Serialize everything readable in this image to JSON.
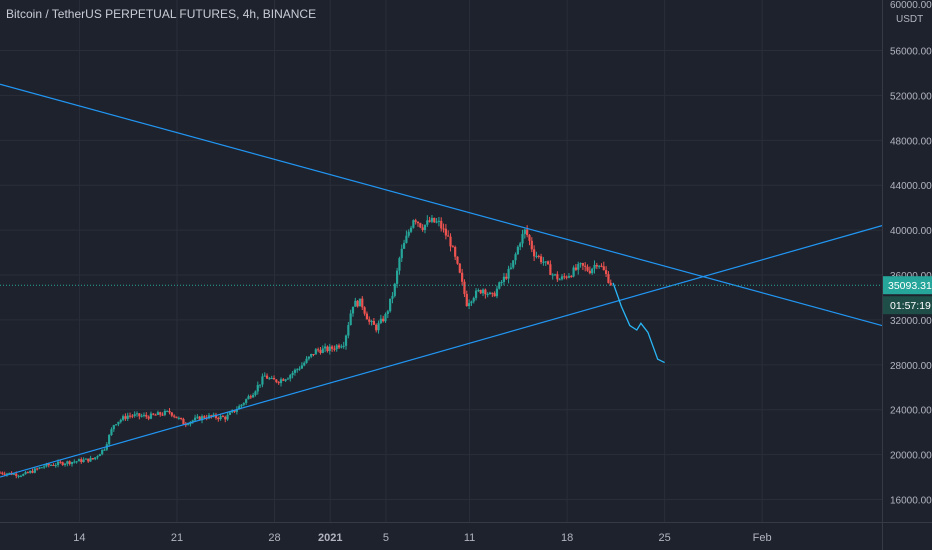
{
  "header": {
    "symbol_title": "Bitcoin / TetherUS PERPETUAL FUTURES, 4h, BINANCE"
  },
  "price_axis": {
    "unit": "USDT",
    "top_label": "60000.00",
    "last_price": "35093.31",
    "countdown": "01:57:19"
  },
  "colors": {
    "background": "#1e222d",
    "grid": "#2a2e39",
    "up_candle": "#26a69a",
    "down_candle": "#ef5350",
    "trendline": "#2196f3",
    "projection": "#29b6f6",
    "axis_text": "#b2b5be"
  },
  "chart_data": {
    "type": "candlestick",
    "title": "Bitcoin / TetherUS PERPETUAL FUTURES, 4h, BINANCE",
    "ylim": [
      14000,
      60500
    ],
    "y_ticks": [
      "16000.00",
      "20000.00",
      "24000.00",
      "28000.00",
      "32000.00",
      "36000.00",
      "40000.00",
      "44000.00",
      "48000.00",
      "52000.00",
      "56000.00"
    ],
    "x_ticks": [
      "14",
      "21",
      "28",
      "2021",
      "5",
      "11",
      "18",
      "25",
      "Feb"
    ],
    "x_tick_days": [
      14,
      21,
      28,
      32,
      36,
      42,
      49,
      56,
      63
    ],
    "x_range_days": [
      8.3,
      71.6
    ],
    "price_path": [
      [
        8.3,
        18400
      ],
      [
        10,
        18200
      ],
      [
        11.5,
        19000
      ],
      [
        13,
        19300
      ],
      [
        15,
        19600
      ],
      [
        15.8,
        20600
      ],
      [
        16.5,
        22800
      ],
      [
        17.5,
        23500
      ],
      [
        19,
        23400
      ],
      [
        20.5,
        23800
      ],
      [
        21.5,
        22800
      ],
      [
        23,
        23400
      ],
      [
        24.5,
        23300
      ],
      [
        25.5,
        24300
      ],
      [
        26.5,
        25600
      ],
      [
        27.3,
        27000
      ],
      [
        27.8,
        26600
      ],
      [
        28.3,
        26600
      ],
      [
        29,
        27000
      ],
      [
        30,
        28000
      ],
      [
        31,
        29300
      ],
      [
        32,
        29400
      ],
      [
        33,
        30000
      ],
      [
        33.6,
        33400
      ],
      [
        34.2,
        33600
      ],
      [
        34.8,
        31800
      ],
      [
        35.3,
        31300
      ],
      [
        36,
        32400
      ],
      [
        36.6,
        34800
      ],
      [
        37,
        37700
      ],
      [
        37.5,
        39400
      ],
      [
        38,
        41200
      ],
      [
        38.6,
        40300
      ],
      [
        39.2,
        40800
      ],
      [
        39.8,
        40600
      ],
      [
        40.6,
        39000
      ],
      [
        41.3,
        36000
      ],
      [
        41.8,
        33500
      ],
      [
        42.3,
        34200
      ],
      [
        43,
        34800
      ],
      [
        43.6,
        34000
      ],
      [
        44.2,
        35200
      ],
      [
        45,
        36600
      ],
      [
        45.6,
        39000
      ],
      [
        46,
        40000
      ],
      [
        46.6,
        38000
      ],
      [
        47.3,
        37200
      ],
      [
        48,
        36000
      ],
      [
        48.5,
        35600
      ],
      [
        49.3,
        36200
      ],
      [
        50,
        36800
      ],
      [
        50.6,
        36400
      ],
      [
        51.2,
        37200
      ],
      [
        51.8,
        36000
      ],
      [
        52.2,
        35100
      ]
    ],
    "trendlines": [
      {
        "name": "resistance",
        "points": [
          [
            8.3,
            53000
          ],
          [
            71.6,
            31500
          ]
        ]
      },
      {
        "name": "support",
        "points": [
          [
            8.3,
            18000
          ],
          [
            71.6,
            40400
          ]
        ]
      }
    ],
    "projection": [
      [
        52.3,
        35300
      ],
      [
        52.9,
        33200
      ],
      [
        53.5,
        31500
      ],
      [
        54.0,
        31100
      ],
      [
        54.3,
        31700
      ],
      [
        54.8,
        30900
      ],
      [
        55.5,
        28500
      ],
      [
        56.0,
        28200
      ]
    ],
    "last_price": 35093.31,
    "grid": true
  }
}
